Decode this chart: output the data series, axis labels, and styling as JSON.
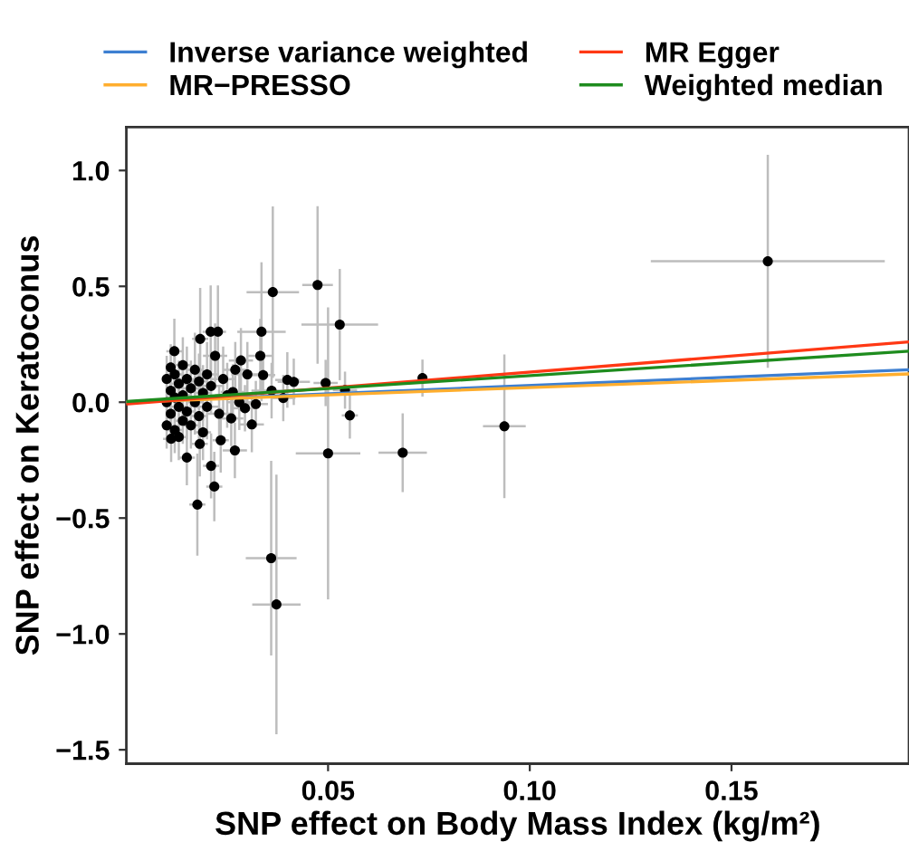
{
  "chart_data": {
    "type": "scatter",
    "xlabel": "SNP effect on Body Mass Index (kg/m²)",
    "ylabel": "SNP effect on Keratoconus",
    "xlim": [
      0,
      0.194
    ],
    "ylim": [
      -1.56,
      1.187
    ],
    "xticks": [
      {
        "value": 0.05,
        "label": "0.05"
      },
      {
        "value": 0.1,
        "label": "0.10"
      },
      {
        "value": 0.15,
        "label": "0.15"
      }
    ],
    "yticks": [
      {
        "value": 1.0,
        "label": "1.0"
      },
      {
        "value": 0.5,
        "label": "0.5"
      },
      {
        "value": 0.0,
        "label": "0.0"
      },
      {
        "value": -0.5,
        "label": "−0.5"
      },
      {
        "value": -1.0,
        "label": "−1.0"
      },
      {
        "value": -1.5,
        "label": "−1.5"
      }
    ],
    "grid": false,
    "legend": "top",
    "series": [
      {
        "color": "#000000",
        "marker": "circle",
        "x": [
          0.159,
          0.0363,
          0.0474,
          0.0529,
          0.0335,
          0.0494,
          0.0542,
          0.0554,
          0.05,
          0.0685,
          0.0734,
          0.0937,
          0.0359,
          0.0372,
          0.0176,
          0.0218,
          0.021,
          0.0269,
          0.015,
          0.0311,
          0.0332,
          0.0399,
          0.0183,
          0.0209,
          0.0227,
          0.0119,
          0.0284,
          0.0321,
          0.0294,
          0.0389,
          0.0264,
          0.0182,
          0.0111,
          0.0234,
          0.0339,
          0.01,
          0.01,
          0.01,
          0.011,
          0.011,
          0.011,
          0.012,
          0.012,
          0.012,
          0.013,
          0.013,
          0.013,
          0.014,
          0.014,
          0.014,
          0.015,
          0.015,
          0.016,
          0.016,
          0.017,
          0.017,
          0.018,
          0.018,
          0.019,
          0.019,
          0.02,
          0.02,
          0.021,
          0.022,
          0.023,
          0.024,
          0.025,
          0.026,
          0.027,
          0.028,
          0.03,
          0.036,
          0.0415
        ],
        "values": [
          0.608,
          0.475,
          0.506,
          0.335,
          0.304,
          0.083,
          0.052,
          -0.057,
          -0.221,
          -0.218,
          0.104,
          -0.104,
          -0.673,
          -0.873,
          -0.442,
          -0.364,
          -0.275,
          -0.208,
          -0.239,
          -0.096,
          0.2,
          0.096,
          0.273,
          0.304,
          0.304,
          0.22,
          0.18,
          -0.008,
          -0.026,
          0.018,
          0.044,
          -0.18,
          -0.158,
          -0.164,
          0.117,
          0.1,
          0.0,
          -0.1,
          0.15,
          0.05,
          -0.05,
          0.12,
          0.02,
          -0.12,
          0.08,
          -0.02,
          -0.15,
          0.16,
          0.03,
          -0.08,
          0.1,
          -0.04,
          0.06,
          -0.1,
          0.14,
          0.0,
          0.09,
          -0.06,
          0.04,
          -0.13,
          0.12,
          -0.02,
          0.07,
          0.2,
          -0.05,
          0.1,
          0.03,
          -0.07,
          0.14,
          0.0,
          0.12,
          0.05,
          0.088
        ],
        "errors": [
          0.46,
          0.37,
          0.34,
          0.24,
          0.3,
          0.1,
          0.08,
          0.1,
          0.63,
          0.17,
          0.08,
          0.31,
          0.42,
          0.56,
          0.22,
          0.15,
          0.14,
          0.12,
          0.12,
          0.12,
          0.16,
          0.12,
          0.22,
          0.2,
          0.2,
          0.14,
          0.14,
          0.1,
          0.1,
          0.1,
          0.12,
          0.14,
          0.1,
          0.14,
          0.1,
          0.1,
          0.1,
          0.1,
          0.1,
          0.1,
          0.1,
          0.1,
          0.12,
          0.1,
          0.1,
          0.12,
          0.1,
          0.12,
          0.12,
          0.1,
          0.14,
          0.12,
          0.12,
          0.1,
          0.16,
          0.14,
          0.12,
          0.12,
          0.12,
          0.12,
          0.14,
          0.14,
          0.12,
          0.14,
          0.12,
          0.14,
          0.14,
          0.12,
          0.12,
          0.12,
          0.14,
          0.12,
          0.1
        ],
        "xerrors": [
          0.029,
          0.0065,
          0.0038,
          0.0095,
          0.006,
          0.003,
          0.003,
          0.002,
          0.008,
          0.006,
          0.001,
          0.0053,
          0.0063,
          0.006,
          0.002,
          0.002,
          0.002,
          0.003,
          0.002,
          0.003,
          0.003,
          0.003,
          0.002,
          0.002,
          0.002,
          0.002,
          0.003,
          0.003,
          0.003,
          0.003,
          0.003,
          0.002,
          0.002,
          0.002,
          0.003,
          0.001,
          0.001,
          0.001,
          0.001,
          0.001,
          0.001,
          0.002,
          0.002,
          0.002,
          0.002,
          0.002,
          0.002,
          0.002,
          0.002,
          0.002,
          0.002,
          0.002,
          0.002,
          0.002,
          0.002,
          0.002,
          0.002,
          0.002,
          0.002,
          0.002,
          0.003,
          0.003,
          0.003,
          0.003,
          0.003,
          0.003,
          0.003,
          0.003,
          0.003,
          0.003,
          0.004,
          0.005,
          0.004
        ]
      },
      {
        "type": "line",
        "name": "Inverse variance weighted",
        "color": "#3d7fd1",
        "x": [
          0,
          0.194
        ],
        "values": [
          0,
          0.14
        ]
      },
      {
        "type": "line",
        "name": "MR−PRESSO",
        "color": "#ffae2e",
        "x": [
          0,
          0.194
        ],
        "values": [
          0,
          0.122
        ]
      },
      {
        "type": "line",
        "name": "MR Egger",
        "color": "#ff3814",
        "x": [
          0,
          0.194
        ],
        "values": [
          -0.008,
          0.26
        ]
      },
      {
        "type": "line",
        "name": "Weighted median",
        "color": "#1e8c1e",
        "x": [
          0,
          0.194
        ],
        "values": [
          0.003,
          0.22
        ]
      }
    ]
  }
}
